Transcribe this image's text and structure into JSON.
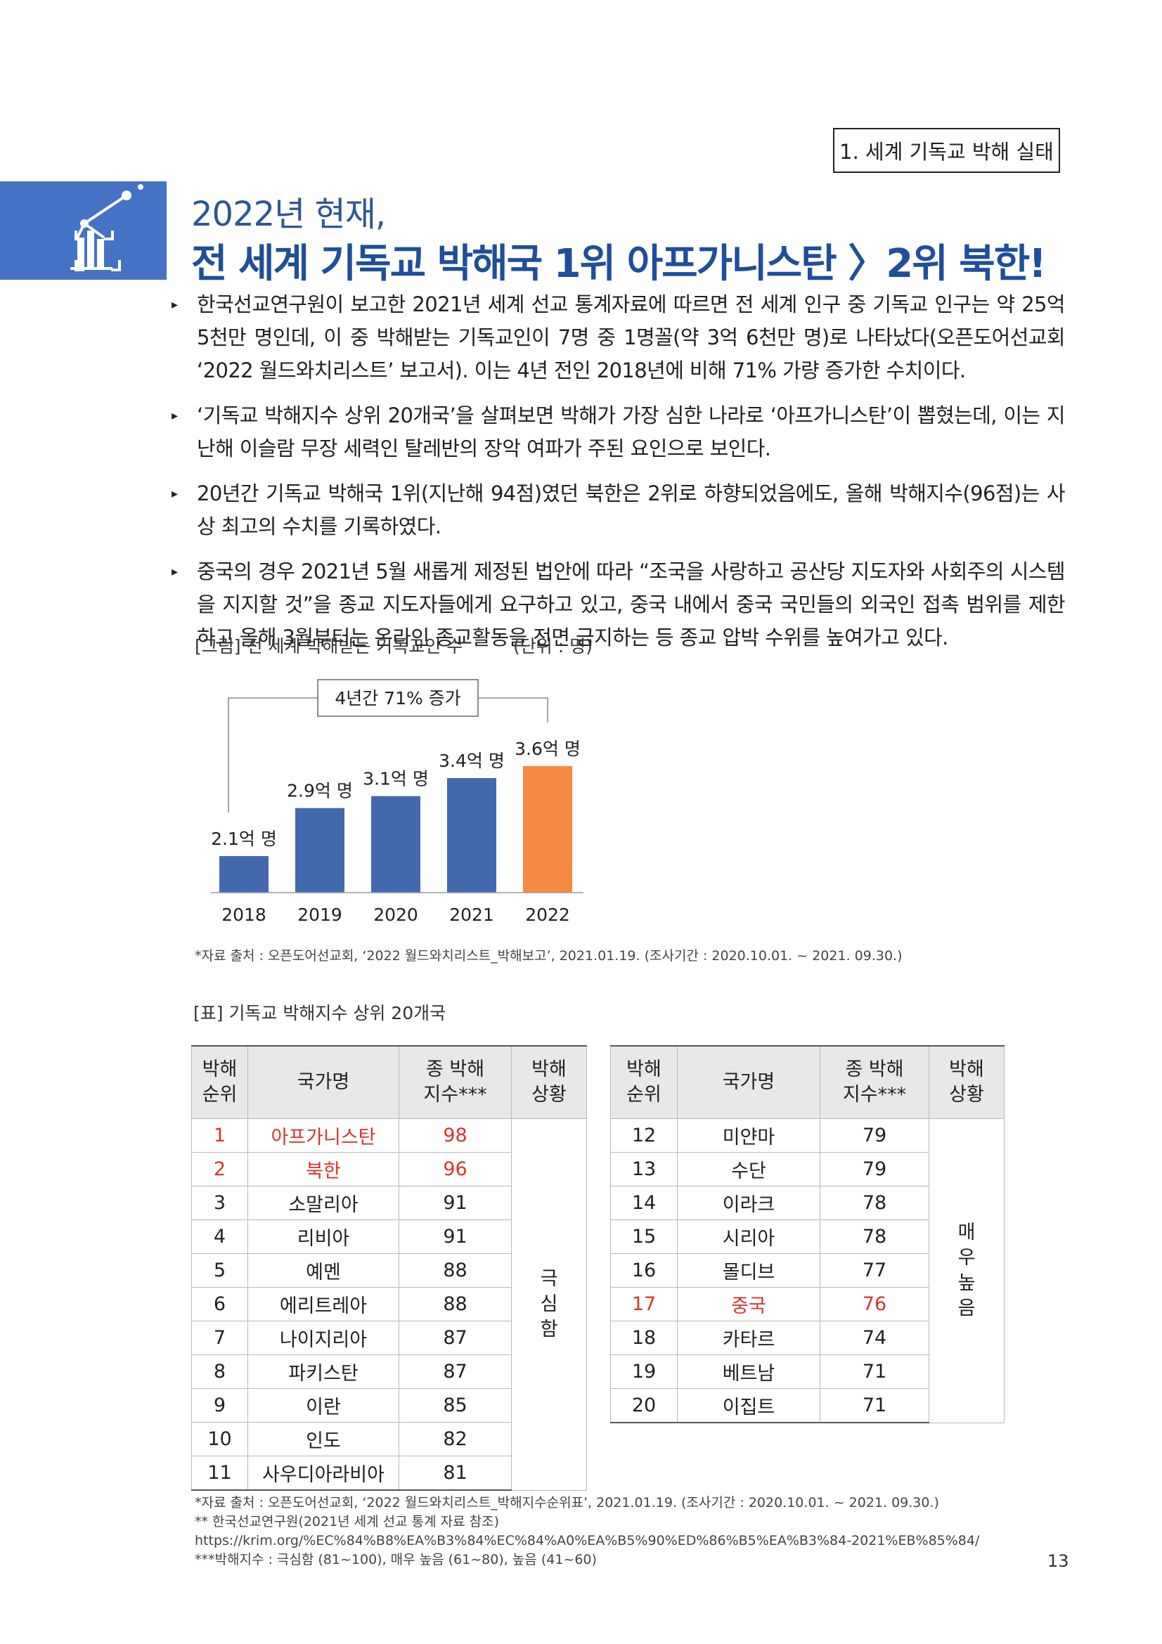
{
  "section_label": "1. 세계 기독교 박해 실태",
  "title": {
    "line1": "2022년 현재,",
    "line2": "전 세계 기독교 박해국 1위 아프가니스탄 〉2위 북한!"
  },
  "bullets": [
    "한국선교연구원이 보고한 2021년 세계 선교 통계자료에 따르면 전 세계 인구 중 기독교 인구는 약 25억 5천만 명인데, 이 중 박해받는 기독교인이 7명 중 1명꼴(약 3억 6천만 명)로 나타났다(오픈도어선교회 ‘2022 월드와치리스트’ 보고서). 이는 4년 전인 2018년에 비해 71% 가량 증가한 수치이다.",
    "‘기독교 박해지수 상위 20개국’을 살펴보면 박해가 가장 심한 나라로 ‘아프가니스탄’이 뽑혔는데, 이는 지난해 이슬람 무장 세력인 탈레반의 장악 여파가 주된 요인으로 보인다.",
    "20년간 기독교 박해국 1위(지난해 94점)였던 북한은 2위로 하향되었음에도, 올해 박해지수(96점)는 사상 최고의 수치를 기록하였다.",
    "중국의 경우 2021년 5월 새롭게 제정된 법안에 따라 “조국을 사랑하고 공산당 지도자와 사회주의 시스템을 지지할 것”을 종교 지도자들에게 요구하고 있고, 중국 내에서 중국 국민들의 외국인 접촉 범위를 제한하고 올해 3월부터는 온라인 종교활동을 전면 금지하는 등 종교 압박 수위를 높여가고 있다."
  ],
  "figure": {
    "caption": "[그림] 전 세계 박해받는 기독교인 수",
    "unit": "(단위 : 명)",
    "source": "*자료 출처 : 오픈도어선교회, ‘2022 월드와치리스트_박해보고’, 2021.01.19. (조사기간 : 2020.10.01. ~ 2021. 09.30.)"
  },
  "chart_data": {
    "type": "bar",
    "categories": [
      "2018",
      "2019",
      "2020",
      "2021",
      "2022"
    ],
    "values": [
      2.1,
      2.9,
      3.1,
      3.4,
      3.6
    ],
    "data_labels": [
      "2.1억 명",
      "2.9억 명",
      "3.1억 명",
      "3.4억 명",
      "3.6억 명"
    ],
    "annotation": "4년간 71% 증가",
    "ylim": [
      1.6,
      3.6
    ],
    "grid": false,
    "colors": {
      "default": "#4269ad",
      "highlight": "#f58a42"
    },
    "highlight_index": 4
  },
  "table": {
    "caption": "[표] 기독교 박해지수 상위 20개국",
    "headers": {
      "rank": "박해\n순위",
      "country": "국가명",
      "score": "종 박해\n지수***",
      "status": "박해\n상황"
    },
    "left_rows": [
      {
        "rank": "1",
        "country": "아프가니스탄",
        "score": "98",
        "highlight": true
      },
      {
        "rank": "2",
        "country": "북한",
        "score": "96",
        "highlight": true
      },
      {
        "rank": "3",
        "country": "소말리아",
        "score": "91"
      },
      {
        "rank": "4",
        "country": "리비아",
        "score": "91"
      },
      {
        "rank": "5",
        "country": "예멘",
        "score": "88"
      },
      {
        "rank": "6",
        "country": "에리트레아",
        "score": "88"
      },
      {
        "rank": "7",
        "country": "나이지리아",
        "score": "87"
      },
      {
        "rank": "8",
        "country": "파키스탄",
        "score": "87"
      },
      {
        "rank": "9",
        "country": "이란",
        "score": "85"
      },
      {
        "rank": "10",
        "country": "인도",
        "score": "82"
      },
      {
        "rank": "11",
        "country": "사우디아라비아",
        "score": "81"
      }
    ],
    "left_status": "극\n심\n함",
    "right_rows": [
      {
        "rank": "12",
        "country": "미얀마",
        "score": "79"
      },
      {
        "rank": "13",
        "country": "수단",
        "score": "79"
      },
      {
        "rank": "14",
        "country": "이라크",
        "score": "78"
      },
      {
        "rank": "15",
        "country": "시리아",
        "score": "78"
      },
      {
        "rank": "16",
        "country": "몰디브",
        "score": "77"
      },
      {
        "rank": "17",
        "country": "중국",
        "score": "76",
        "highlight": true
      },
      {
        "rank": "18",
        "country": "카타르",
        "score": "74"
      },
      {
        "rank": "19",
        "country": "베트남",
        "score": "71"
      },
      {
        "rank": "20",
        "country": "이집트",
        "score": "71"
      }
    ],
    "right_status": "매\n우\n높\n음"
  },
  "footnotes": [
    "*자료 출처 : 오픈도어선교회, ‘2022 월드와치리스트_박해지수순위표’, 2021.01.19. (조사기간 : 2020.10.01. ~ 2021. 09.30.)",
    "** 한국선교연구원(2021년 세계 선교 통계 자료 참조)",
    "https://krim.org/%EC%84%B8%EA%B3%84%EC%84%A0%EA%B5%90%ED%86%B5%EA%B3%84-2021%EB%85%84/",
    "***박해지수 : 극심함 (81~100), 매우 높음 (61~80), 높음 (41~60)"
  ],
  "page_number": "13"
}
